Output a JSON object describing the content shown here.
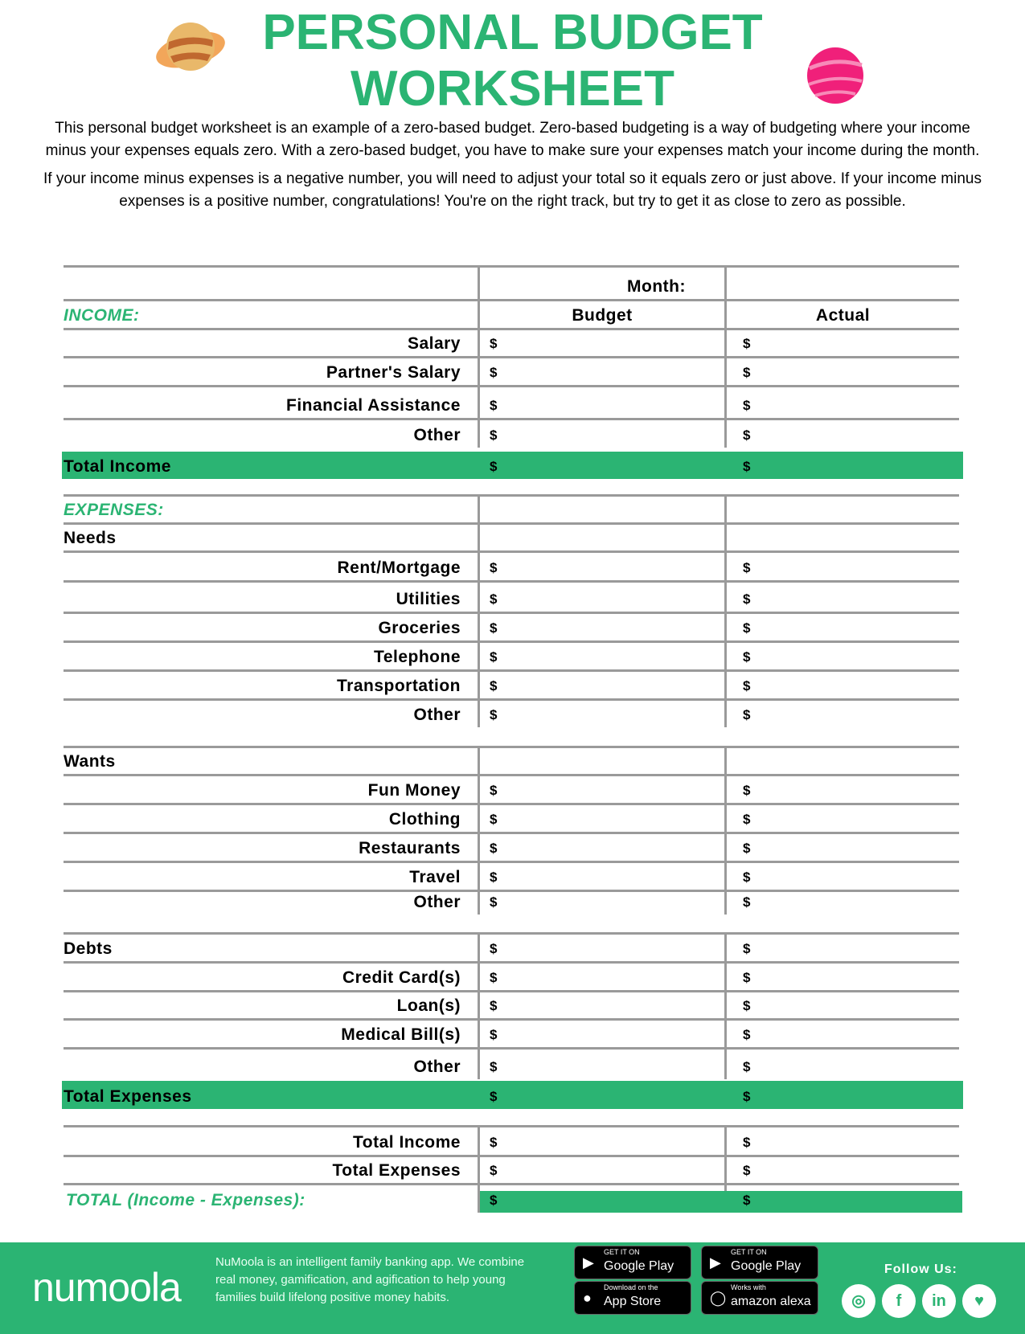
{
  "title": {
    "line1": "PERSONAL BUDGET",
    "line2": "WORKSHEET"
  },
  "intro": [
    "This personal budget worksheet is an example of a zero-based budget. Zero-based budgeting is a way of budgeting where your income minus your expenses equals zero. With a zero-based budget, you have to make sure your expenses match your income during the month.",
    "If your income minus expenses is a negative number, you will need to adjust your total so it equals zero or just above. If your income minus expenses is a positive number, congratulations! You're on the right track, but try to get it as close to zero as possible."
  ],
  "table": {
    "month_label": "Month:",
    "budget_header": "Budget",
    "actual_header": "Actual",
    "currency": "$",
    "rows": [
      {
        "type": "month",
        "label": "Month:"
      },
      {
        "type": "section",
        "label": "INCOME:"
      },
      {
        "type": "item",
        "label": "Salary"
      },
      {
        "type": "item",
        "label": "Partner's Salary"
      },
      {
        "type": "item",
        "label": "Financial Assistance"
      },
      {
        "type": "item",
        "label": "Other"
      },
      {
        "type": "total",
        "label": "Total Income"
      },
      {
        "type": "section2",
        "label": "EXPENSES:"
      },
      {
        "type": "group",
        "label": "Needs"
      },
      {
        "type": "item",
        "label": "Rent/Mortgage"
      },
      {
        "type": "item",
        "label": "Utilities"
      },
      {
        "type": "item",
        "label": "Groceries"
      },
      {
        "type": "item",
        "label": "Telephone"
      },
      {
        "type": "item",
        "label": "Transportation"
      },
      {
        "type": "item",
        "label": "Other"
      },
      {
        "type": "group",
        "label": "Wants"
      },
      {
        "type": "item",
        "label": "Fun Money"
      },
      {
        "type": "item",
        "label": "Clothing"
      },
      {
        "type": "item",
        "label": "Restaurants"
      },
      {
        "type": "item",
        "label": "Travel"
      },
      {
        "type": "item",
        "label": "Other"
      },
      {
        "type": "groupd",
        "label": "Debts"
      },
      {
        "type": "item",
        "label": "Credit Card(s)"
      },
      {
        "type": "item",
        "label": "Loan(s)"
      },
      {
        "type": "item",
        "label": "Medical Bill(s)"
      },
      {
        "type": "item",
        "label": "Other"
      },
      {
        "type": "total",
        "label": "Total Expenses"
      },
      {
        "type": "item",
        "label": "Total Income"
      },
      {
        "type": "item",
        "label": "Total Expenses"
      },
      {
        "type": "final",
        "label": "TOTAL (Income - Expenses):"
      }
    ]
  },
  "footer": {
    "logo": "numoola",
    "description": "NuMoola is an intelligent family banking app. We combine real money, gamification, and agification to help young families build lifelong positive money habits.",
    "badges": [
      {
        "small": "GET IT ON",
        "big": "Google Play",
        "icon": "play-icon"
      },
      {
        "small": "GET IT ON",
        "big": "Google Play",
        "icon": "play-icon"
      },
      {
        "small": "Download on the",
        "big": "App Store",
        "icon": "apple-icon"
      },
      {
        "small": "Works with",
        "big": "amazon alexa",
        "icon": "alexa-icon"
      }
    ],
    "follow_label": "Follow Us:",
    "social": [
      "instagram-icon",
      "facebook-icon",
      "linkedin-icon",
      "twitter-icon"
    ]
  },
  "colors": {
    "accent": "#2bb473",
    "lines": "#9a9a9a"
  }
}
